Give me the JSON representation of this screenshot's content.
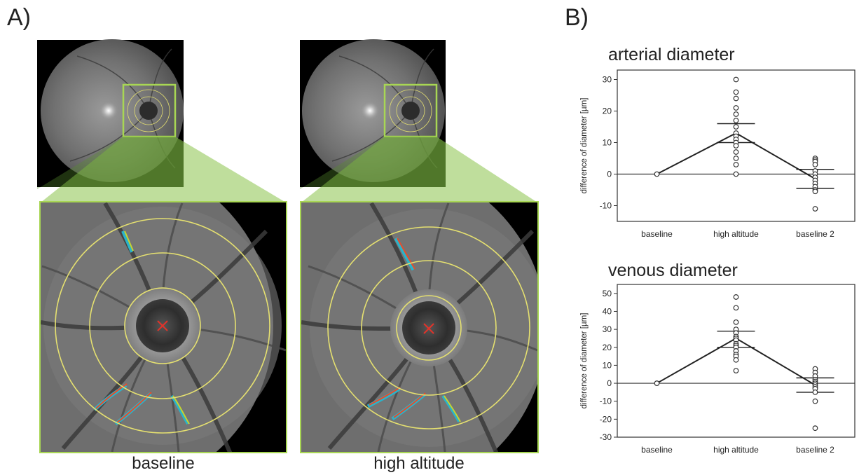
{
  "panel_a_label": "A)",
  "panel_b_label": "B)",
  "captions": {
    "left": "baseline",
    "right": "high altitude"
  },
  "chart_data": [
    {
      "type": "scatter",
      "title": "arterial diameter",
      "ylabel": "difference of diameter [µm]",
      "categories": [
        "baseline",
        "high altitude",
        "baseline 2"
      ],
      "ylim": [
        -15,
        33
      ],
      "yticks": [
        -10,
        0,
        10,
        20,
        30
      ],
      "points": [
        {
          "category": "baseline",
          "values": [
            0
          ]
        },
        {
          "category": "high altitude",
          "values": [
            30,
            26,
            24,
            21,
            19,
            17,
            15,
            13,
            12,
            11,
            10,
            9,
            7,
            5,
            3,
            0
          ]
        },
        {
          "category": "baseline 2",
          "values": [
            5,
            4.5,
            4,
            3,
            1,
            0,
            -1,
            -2,
            -3,
            -4,
            -5,
            -5.5,
            -11
          ]
        }
      ],
      "mean_line": [
        0,
        13,
        -1.5
      ],
      "error_bars": [
        null,
        [
          10,
          16
        ],
        [
          -4.5,
          1.5
        ]
      ]
    },
    {
      "type": "scatter",
      "title": "venous diameter",
      "ylabel": "difference of diameter [µm]",
      "categories": [
        "baseline",
        "high altitude",
        "baseline 2"
      ],
      "ylim": [
        -30,
        55
      ],
      "yticks": [
        -30,
        -20,
        -10,
        0,
        10,
        20,
        30,
        40,
        50
      ],
      "points": [
        {
          "category": "baseline",
          "values": [
            0
          ]
        },
        {
          "category": "high altitude",
          "values": [
            48,
            42,
            34,
            30,
            28,
            26,
            25,
            24,
            22,
            21,
            20,
            18,
            16,
            15,
            13,
            7
          ]
        },
        {
          "category": "baseline 2",
          "values": [
            8,
            6,
            4,
            2,
            1,
            0,
            -1,
            -2,
            -3,
            -5,
            -10,
            -25
          ]
        }
      ],
      "mean_line": [
        0,
        25,
        -1
      ],
      "error_bars": [
        null,
        [
          20,
          29
        ],
        [
          -5,
          3
        ]
      ]
    }
  ]
}
